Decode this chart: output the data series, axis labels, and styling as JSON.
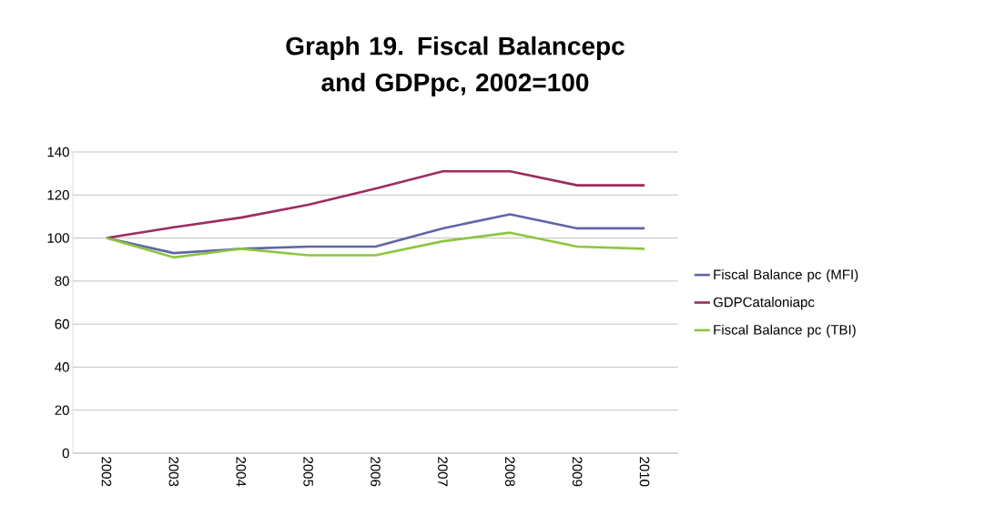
{
  "chart_data": {
    "type": "line",
    "title": "Graph 19. Fiscal Balancepc and GDPpc, 2002=100",
    "categories": [
      "2002",
      "2003",
      "2004",
      "2005",
      "2006",
      "2007",
      "2008",
      "2009",
      "2010"
    ],
    "series": [
      {
        "name": "Fiscal Balance pc (MFI)",
        "color": "#6264a7",
        "values": [
          100,
          93,
          95,
          96,
          96,
          104.5,
          111,
          104.5,
          104.5
        ]
      },
      {
        "name": "GDPCataloniapc",
        "color": "#9b2d5f",
        "values": [
          100,
          105,
          109.5,
          115.5,
          123,
          131,
          131,
          124.5,
          124.5
        ]
      },
      {
        "name": "Fiscal Balance pc (TBI)",
        "color": "#8dc63f",
        "values": [
          100,
          91,
          95,
          92,
          92,
          98.5,
          102.5,
          96,
          95
        ]
      }
    ],
    "ylim": [
      0,
      140
    ],
    "yticks": [
      0,
      20,
      40,
      60,
      80,
      100,
      120,
      140
    ],
    "grid": "y",
    "legend": "right",
    "marker": "none",
    "line_style": "solid"
  }
}
